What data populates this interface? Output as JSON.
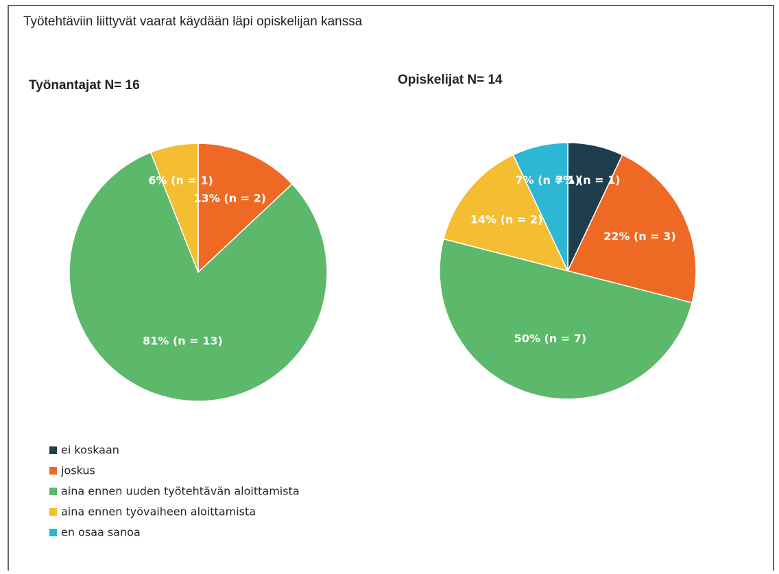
{
  "title": "Työtehtäviin liittyvät vaarat käydään läpi opiskelijan kanssa",
  "chart_data": [
    {
      "type": "pie",
      "title": "Työnantajat N= 16",
      "categories": [
        "joskus",
        "aina ennen uuden työtehtävän aloittamista",
        "aina ennen työvaiheen aloittamista"
      ],
      "values": [
        13,
        81,
        6
      ],
      "value_labels": [
        "13% (n = 2)",
        "81% (n = 13)",
        "6% (n = 1)"
      ],
      "colors": [
        "#ee6a24",
        "#5cb86a",
        "#f5bd31"
      ]
    },
    {
      "type": "pie",
      "title": "Opiskelijat N= 14",
      "categories": [
        "ei koskaan",
        "joskus",
        "aina ennen uuden työtehtävän aloittamista",
        "aina ennen työvaiheen aloittamista",
        "en osaa sanoa"
      ],
      "values": [
        7,
        22,
        50,
        14,
        7
      ],
      "value_labels": [
        "7% (n = 1)",
        "22% (n = 3)",
        "50% (n = 7)",
        "14% (n = 2)",
        "7% (n = 1)"
      ],
      "colors": [
        "#1e3e4e",
        "#ee6a24",
        "#5cb86a",
        "#f5bd31",
        "#2db7d5"
      ]
    }
  ]
}
